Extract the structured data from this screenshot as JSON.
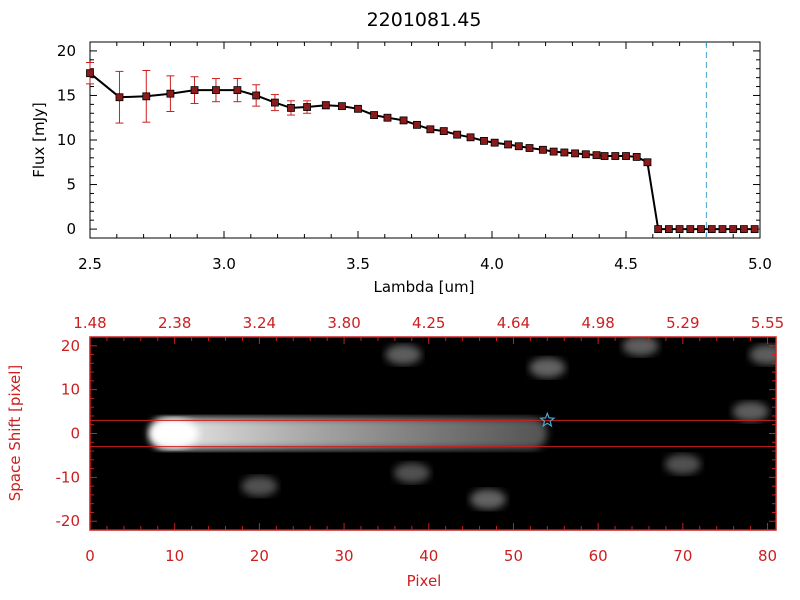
{
  "title": "2201081.45",
  "colors": {
    "background": "#ffffff",
    "axis_top": "#000000",
    "axis_bottom": "#cc1f1f",
    "error_bars": "#cc1f1f",
    "markers": "#8b1a1a",
    "line": "#000000",
    "marker_line": "#4da6cc",
    "trace_lines": "#cc1f1f",
    "star": "#4da6cc"
  },
  "chart_data": [
    {
      "type": "line",
      "title": "2201081.45",
      "xlabel": "Lambda [um]",
      "ylabel": "Flux [mJy]",
      "xlim": [
        2.5,
        5.0
      ],
      "ylim": [
        -1,
        21
      ],
      "xticks": [
        "2.5",
        "3.0",
        "3.5",
        "4.0",
        "4.5",
        "5.0"
      ],
      "yticks": [
        "0",
        "5",
        "10",
        "15",
        "20"
      ],
      "grid": false,
      "vertical_marker_x": 4.8,
      "series": [
        {
          "x": [
            2.5,
            2.61,
            2.71,
            2.8,
            2.89,
            2.97,
            3.05,
            3.12,
            3.19,
            3.25,
            3.31,
            3.38,
            3.44,
            3.5,
            3.56,
            3.61,
            3.67,
            3.72,
            3.77,
            3.82,
            3.87,
            3.92,
            3.97,
            4.01,
            4.06,
            4.1,
            4.14,
            4.19,
            4.23,
            4.27,
            4.31,
            4.35,
            4.39,
            4.42,
            4.46,
            4.5,
            4.54,
            4.58,
            4.62,
            4.66,
            4.7,
            4.74,
            4.78,
            4.82,
            4.86,
            4.9,
            4.94,
            4.98
          ],
          "y": [
            17.5,
            14.8,
            14.9,
            15.2,
            15.6,
            15.6,
            15.6,
            15.0,
            14.2,
            13.6,
            13.7,
            13.9,
            13.8,
            13.5,
            12.8,
            12.5,
            12.2,
            11.7,
            11.2,
            11.0,
            10.6,
            10.3,
            9.9,
            9.7,
            9.5,
            9.3,
            9.1,
            8.9,
            8.7,
            8.6,
            8.5,
            8.4,
            8.3,
            8.2,
            8.2,
            8.2,
            8.1,
            7.5,
            0,
            0,
            0,
            0,
            0,
            0,
            0,
            0,
            0,
            0
          ],
          "err": [
            1.2,
            2.9,
            2.9,
            2.0,
            1.5,
            1.3,
            1.3,
            1.2,
            0.9,
            0.8,
            0.7,
            0.4,
            0.3,
            0.3,
            0.3,
            0.3,
            0.3,
            0.3,
            0.3,
            0.3,
            0.3,
            0.3,
            0.3,
            0.3,
            0.3,
            0.3,
            0.3,
            0.3,
            0.3,
            0.3,
            0.3,
            0.3,
            0.3,
            0.3,
            0.3,
            0.3,
            0.3,
            0.3,
            0,
            0,
            0,
            0,
            0,
            0,
            0,
            0,
            0,
            0
          ]
        }
      ]
    },
    {
      "type": "heatmap",
      "xlabel": "Pixel",
      "ylabel": "Space Shift [pixel]",
      "xlim": [
        0,
        81
      ],
      "ylim": [
        -22,
        22
      ],
      "xticks": [
        "0",
        "10",
        "20",
        "30",
        "40",
        "50",
        "60",
        "70",
        "80"
      ],
      "yticks": [
        "-20",
        "-10",
        "0",
        "10",
        "20"
      ],
      "top_ticks": [
        "1.48",
        "2.38",
        "3.24",
        "3.80",
        "4.25",
        "4.64",
        "4.98",
        "5.29",
        "5.55"
      ],
      "trace_lines_y": [
        3,
        -3
      ],
      "star_marker": {
        "x": 54,
        "y": 3
      },
      "colormap": "grayscale",
      "features": [
        {
          "x": [
            7,
            54
          ],
          "y": 0,
          "width": 3,
          "peak_x": 10,
          "brightness": 1.0
        },
        {
          "x": 37,
          "y": 18,
          "brightness": 0.3
        },
        {
          "x": 54,
          "y": 15,
          "brightness": 0.35
        },
        {
          "x": 78,
          "y": 5,
          "brightness": 0.3
        },
        {
          "x": 47,
          "y": -15,
          "brightness": 0.35
        },
        {
          "x": 38,
          "y": -9,
          "brightness": 0.2
        },
        {
          "x": 65,
          "y": 20,
          "brightness": 0.3
        },
        {
          "x": 70,
          "y": -7,
          "brightness": 0.2
        },
        {
          "x": 20,
          "y": -12,
          "brightness": 0.2
        },
        {
          "x": 80,
          "y": 18,
          "brightness": 0.3
        }
      ]
    }
  ]
}
